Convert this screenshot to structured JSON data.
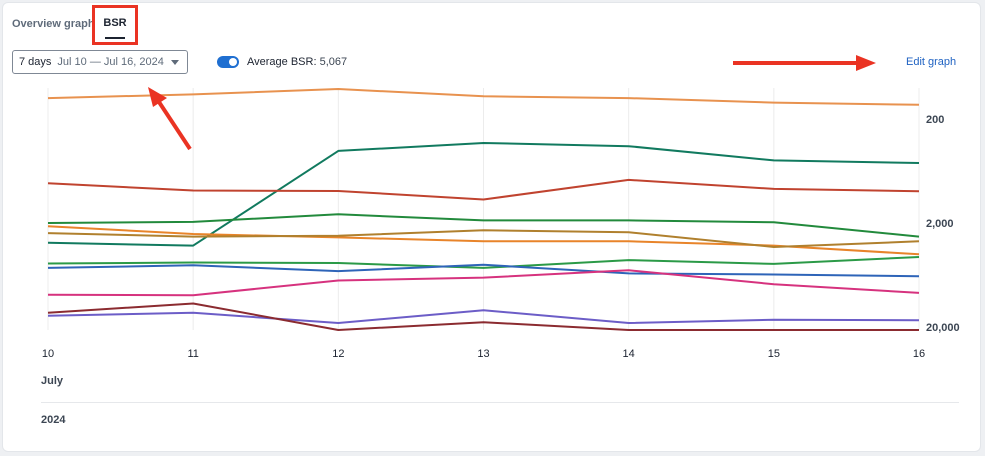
{
  "tabs": {
    "overview_label": "Overview graph",
    "bsr_label": "BSR"
  },
  "controls": {
    "range_label": "7 days",
    "range_dates": "Jul 10 — Jul 16, 2024",
    "toggle_on": true,
    "avg_label": "Average BSR:",
    "avg_value": "5,067",
    "edit_label": "Edit graph"
  },
  "annotation_color": "#ea3323",
  "chart_data": {
    "type": "line",
    "x": [
      10,
      11,
      12,
      13,
      14,
      15,
      16
    ],
    "x_tick_labels": [
      "10",
      "11",
      "12",
      "13",
      "14",
      "15",
      "16"
    ],
    "month_label": "July",
    "year_label": "2024",
    "y_scale": "log",
    "y_inverted": true,
    "y_tick_values": [
      200,
      2000,
      20000
    ],
    "y_tick_labels": [
      "200",
      "2,000",
      "20,000"
    ],
    "ylim": [
      100,
      22000
    ],
    "grid": "vertical",
    "series": [
      {
        "color": "#e8924f",
        "values": [
          126,
          116,
          103,
          121,
          126,
          139,
          146
        ]
      },
      {
        "color": "#117a5f",
        "values": [
          3100,
          3300,
          405,
          340,
          365,
          500,
          530
        ]
      },
      {
        "color": "#c0432f",
        "values": [
          830,
          975,
          985,
          1190,
          770,
          940,
          990
        ]
      },
      {
        "color": "#228a3c",
        "values": [
          2000,
          1950,
          1650,
          1890,
          1890,
          1970,
          2700
        ]
      },
      {
        "color": "#e8842a",
        "values": [
          2150,
          2550,
          2750,
          3000,
          3000,
          3300,
          4000
        ]
      },
      {
        "color": "#b0802e",
        "values": [
          2500,
          2700,
          2650,
          2350,
          2450,
          3400,
          3000
        ]
      },
      {
        "color": "#2b9a47",
        "values": [
          4900,
          4800,
          4850,
          5400,
          4550,
          4950,
          4250
        ]
      },
      {
        "color": "#2e64b8",
        "values": [
          5400,
          5100,
          5800,
          5050,
          6100,
          6250,
          6500
        ]
      },
      {
        "color": "#d6327e",
        "values": [
          9800,
          9900,
          7150,
          6700,
          5700,
          7750,
          9400
        ]
      },
      {
        "color": "#6c5dc7",
        "values": [
          15600,
          14600,
          18300,
          13800,
          18300,
          17000,
          17200
        ]
      },
      {
        "color": "#8b2b30",
        "values": [
          14600,
          11900,
          21500,
          18000,
          26000,
          23500,
          24500
        ]
      }
    ]
  }
}
